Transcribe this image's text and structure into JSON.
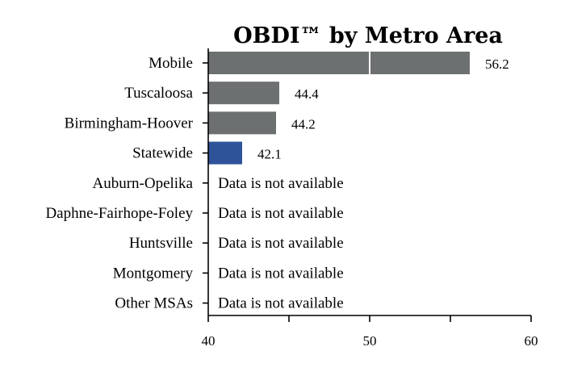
{
  "chart_data": {
    "type": "bar",
    "orientation": "horizontal",
    "title": "OBDI™ by Metro Area",
    "xlabel": "",
    "ylabel": "",
    "xlim": [
      40,
      60
    ],
    "xticks": [
      40,
      50,
      60
    ],
    "grid": false,
    "colors": {
      "default": "#6d7070",
      "highlight": "#2e5399"
    },
    "unavailable_text": "Data is not available",
    "categories": [
      {
        "name": "Mobile",
        "value": 56.2,
        "label": "56.2",
        "highlight": false
      },
      {
        "name": "Tuscaloosa",
        "value": 44.4,
        "label": "44.4",
        "highlight": false
      },
      {
        "name": "Birmingham-Hoover",
        "value": 44.2,
        "label": "44.2",
        "highlight": false
      },
      {
        "name": "Statewide",
        "value": 42.1,
        "label": "42.1",
        "highlight": true
      },
      {
        "name": "Auburn-Opelika",
        "value": null,
        "label": "",
        "highlight": false
      },
      {
        "name": "Daphne-Fairhope-Foley",
        "value": null,
        "label": "",
        "highlight": false
      },
      {
        "name": "Huntsville",
        "value": null,
        "label": "",
        "highlight": false
      },
      {
        "name": "Montgomery",
        "value": null,
        "label": "",
        "highlight": false
      },
      {
        "name": "Other MSAs",
        "value": null,
        "label": "",
        "highlight": false
      }
    ]
  }
}
